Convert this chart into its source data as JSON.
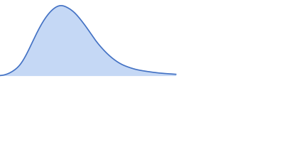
{
  "fill_color": "#c5d8f5",
  "line_color": "#4472c4",
  "line_width": 1.2,
  "background_color": "#ffffff",
  "figsize": [
    4.0,
    2.0
  ],
  "dpi": 100,
  "x_data": [
    0,
    5,
    10,
    15,
    20,
    25,
    30,
    35,
    40,
    45,
    50,
    55,
    60,
    65,
    70,
    75,
    80,
    85,
    90,
    95,
    100,
    105,
    110,
    115,
    120,
    125,
    130
  ],
  "y_data": [
    0.0,
    0.02,
    0.07,
    0.16,
    0.32,
    0.52,
    0.71,
    0.86,
    0.96,
    1.0,
    0.97,
    0.9,
    0.79,
    0.66,
    0.52,
    0.4,
    0.3,
    0.22,
    0.16,
    0.12,
    0.09,
    0.07,
    0.055,
    0.042,
    0.032,
    0.025,
    0.018
  ],
  "xlim": [
    0,
    210
  ],
  "ylim": [
    -0.95,
    1.08
  ]
}
